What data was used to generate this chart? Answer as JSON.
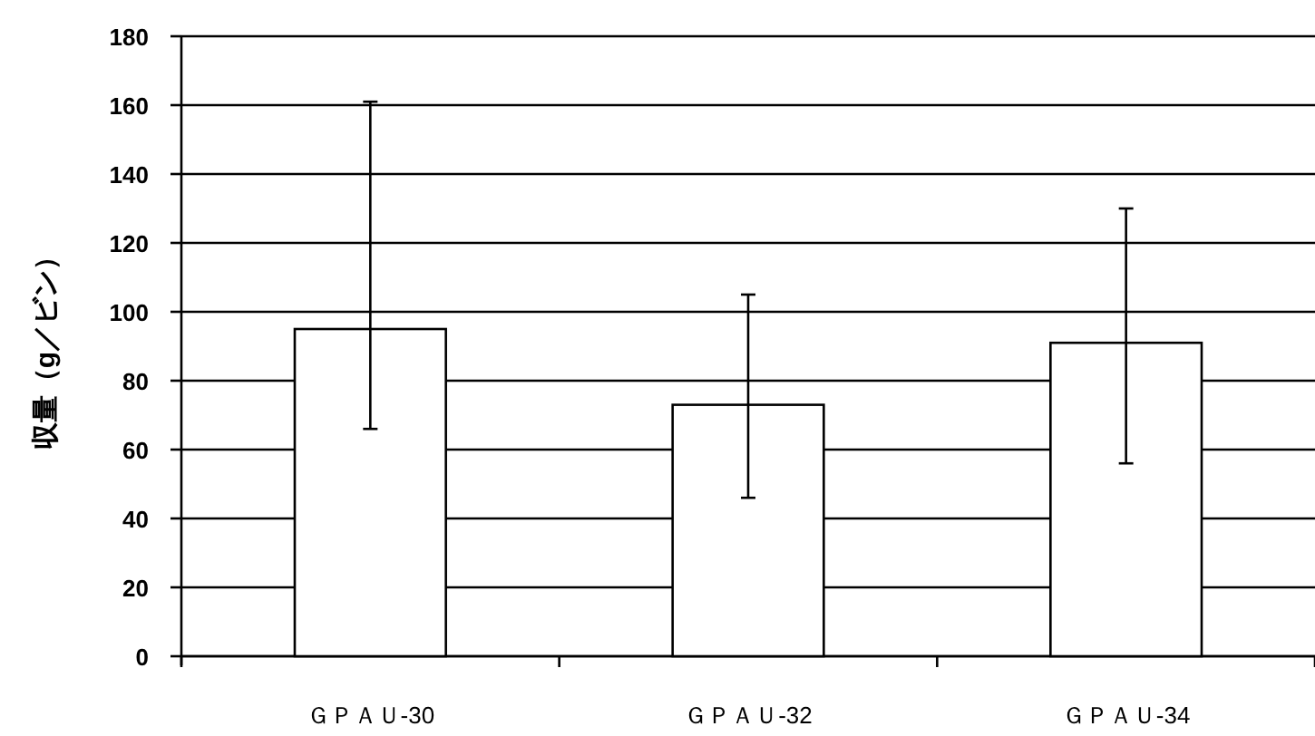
{
  "chart_data": {
    "type": "bar",
    "ylabel": "収量（g／ビン）",
    "categories": [
      "ＧＰＡＵ-30",
      "ＧＰＡＵ-32",
      "ＧＰＡＵ-34"
    ],
    "values": [
      95,
      73,
      91
    ],
    "errors": [
      [
        66,
        161
      ],
      [
        46,
        105
      ],
      [
        56,
        130
      ]
    ],
    "color": "#ffffff",
    "ylim": [
      0,
      180
    ],
    "yticks": [
      0,
      20,
      40,
      60,
      80,
      100,
      120,
      140,
      160,
      180
    ],
    "grid": "y"
  }
}
